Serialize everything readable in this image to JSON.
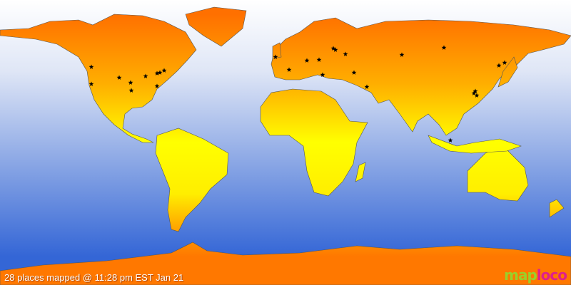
{
  "status": "28 places mapped @ 11:28 pm EST Jan 21",
  "logo": {
    "part1": "map",
    "part2": "loco"
  },
  "marker_icon": "star-icon",
  "colors": {
    "sea_top": "#ffffff",
    "sea_bottom": "#3466d6",
    "land_north": "#ff7800",
    "land_mid": "#ffff00",
    "marker": "#000000"
  }
}
